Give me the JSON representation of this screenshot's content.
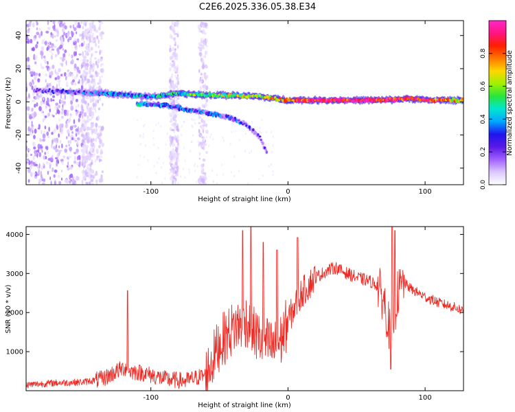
{
  "figure_title": "C2E6.2025.336.05.38.E34",
  "colors": {
    "snr_line": "#ee2a24",
    "background": "#ffffff",
    "axis": "#000000",
    "spectral_cmap": [
      "#ffffff",
      "#dcc8ff",
      "#a061ff",
      "#5a18e6",
      "#1e14f0",
      "#00a6ff",
      "#00e6d2",
      "#28e63c",
      "#a0f000",
      "#ffd700",
      "#ff7800",
      "#ff1e00",
      "#ff1480",
      "#ff28c8"
    ]
  },
  "chart_data": [
    {
      "type": "heatmap",
      "xlabel": "Height of straight line (km)",
      "ylabel": "Frequency (Hz)",
      "xlim": [
        -191,
        128
      ],
      "ylim": [
        -50,
        49
      ],
      "xticks": [
        -100,
        0,
        100
      ],
      "yticks": [
        -40,
        -20,
        0,
        20,
        40
      ],
      "colorbar": {
        "label": "Normalized spectral amplitude",
        "range": [
          0,
          1
        ],
        "ticks": [
          0.0,
          0.2,
          0.4,
          0.6,
          0.8
        ]
      },
      "ridges": [
        {
          "name": "main",
          "points": [
            [
              -185,
              7
            ],
            [
              -160,
              6
            ],
            [
              -130,
              5
            ],
            [
              -100,
              3
            ],
            [
              -80,
              5
            ],
            [
              -60,
              4
            ],
            [
              -40,
              4
            ],
            [
              -20,
              3
            ],
            [
              0,
              1
            ],
            [
              20,
              1
            ],
            [
              60,
              1
            ],
            [
              70,
              1
            ],
            [
              90,
              2
            ],
            [
              100,
              1
            ],
            [
              128,
              1
            ]
          ],
          "amp": [
            0.15,
            0.2,
            0.35,
            0.35,
            0.5,
            0.55,
            0.6,
            0.6,
            0.75,
            0.9,
            0.92,
            0.85,
            0.9,
            0.92,
            0.6
          ]
        },
        {
          "name": "branch",
          "points": [
            [
              -110,
              -1
            ],
            [
              -90,
              -2
            ],
            [
              -70,
              -5
            ],
            [
              -50,
              -8
            ],
            [
              -40,
              -10
            ],
            [
              -30,
              -14
            ],
            [
              -25,
              -18
            ],
            [
              -20,
              -22
            ],
            [
              -15,
              -32
            ]
          ],
          "amp": [
            0.35,
            0.3,
            0.3,
            0.25,
            0.22,
            0.2,
            0.15,
            0.12,
            0.08
          ]
        }
      ]
    },
    {
      "type": "line",
      "xlabel": "Height of straight line (km)",
      "ylabel": "SNR (10 * v/v)",
      "xlim": [
        -191,
        128
      ],
      "ylim": [
        0,
        4200
      ],
      "xticks": [
        -100,
        0,
        100
      ],
      "yticks": [
        1000,
        2000,
        3000,
        4000
      ],
      "series": [
        {
          "x": [
            -191,
            -170,
            -150,
            -135,
            -125,
            -118,
            -115,
            -105,
            -90,
            -75,
            -60,
            -50,
            -40,
            -30,
            -25,
            -20,
            -15,
            -10,
            -5,
            0,
            10,
            20,
            30,
            35,
            40,
            50,
            60,
            65,
            70,
            75,
            80,
            85,
            90,
            100,
            110,
            120,
            128
          ],
          "y": [
            150,
            200,
            220,
            300,
            500,
            600,
            500,
            450,
            300,
            250,
            400,
            1200,
            1600,
            1800,
            1500,
            1300,
            1200,
            1100,
            1300,
            1800,
            2500,
            2900,
            3100,
            3150,
            3050,
            2900,
            2800,
            2700,
            2300,
            1400,
            2500,
            2750,
            2600,
            2400,
            2250,
            2150,
            2050
          ]
        }
      ],
      "spikes": [
        {
          "x": -117,
          "y": 2560
        },
        {
          "x": -33,
          "y": 4100
        },
        {
          "x": -27,
          "y": 4250
        },
        {
          "x": -18,
          "y": 3800
        },
        {
          "x": -8,
          "y": 3600
        },
        {
          "x": 7,
          "y": 3920
        },
        {
          "x": 76,
          "y": 4200
        },
        {
          "x": 78,
          "y": 4100
        },
        {
          "x": 75,
          "y": 550
        }
      ]
    }
  ]
}
